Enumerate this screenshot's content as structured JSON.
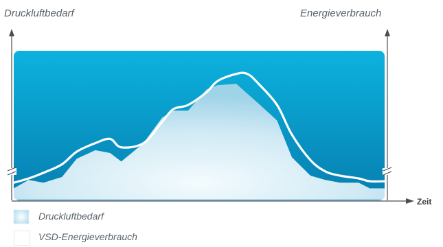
{
  "header": {
    "left_axis_title": "Druckluftbedarf",
    "right_axis_title": "Energieverbrauch"
  },
  "chart_data": {
    "type": "area",
    "title": "",
    "xlabel": "Zeit",
    "ylabel_left": "Druckluftbedarf",
    "ylabel_right": "Energieverbrauch",
    "grid": false,
    "legend_position": "bottom-left",
    "colors": {
      "background_band": "#0796c4",
      "demand_fill": "#d6edf6",
      "energy_line": "#ffffff",
      "axis": "#4a4f55"
    },
    "x": [
      0,
      4,
      8,
      13,
      17,
      22,
      26,
      29,
      35,
      40,
      43,
      47,
      52,
      55,
      60,
      63,
      66,
      71,
      75,
      80,
      84,
      88,
      93,
      96,
      100
    ],
    "series": [
      {
        "name": "Druckluftbedarf",
        "values": [
          0.08,
          0.14,
          0.12,
          0.16,
          0.29,
          0.35,
          0.33,
          0.27,
          0.4,
          0.58,
          0.63,
          0.63,
          0.78,
          0.81,
          0.82,
          0.75,
          0.68,
          0.56,
          0.3,
          0.17,
          0.14,
          0.12,
          0.12,
          0.08,
          0.08
        ]
      },
      {
        "name": "VSD-Energieverbrauch",
        "values": [
          0.12,
          0.15,
          0.19,
          0.25,
          0.34,
          0.4,
          0.43,
          0.37,
          0.4,
          0.55,
          0.64,
          0.67,
          0.76,
          0.84,
          0.89,
          0.89,
          0.82,
          0.67,
          0.46,
          0.28,
          0.2,
          0.17,
          0.15,
          0.13,
          0.13
        ]
      }
    ]
  },
  "legend": [
    {
      "label": "Druckluftbedarf",
      "swatch": "demand"
    },
    {
      "label": "VSD-Energieverbrauch",
      "swatch": "energy"
    }
  ]
}
